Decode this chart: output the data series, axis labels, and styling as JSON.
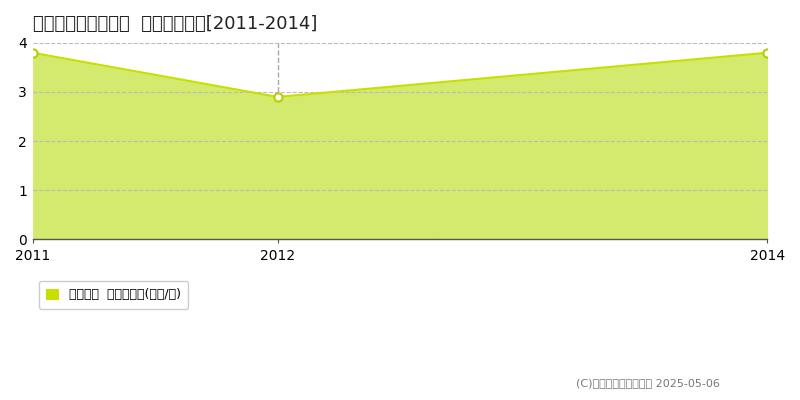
{
  "title": "鳥取市鹿野町乙亥正  土地価格推移[2011-2014]",
  "x_values": [
    2011,
    2012,
    2014
  ],
  "y_values": [
    3.8,
    2.9,
    3.8
  ],
  "xlim": [
    2011,
    2014
  ],
  "ylim": [
    0,
    4
  ],
  "yticks": [
    0,
    1,
    2,
    3,
    4
  ],
  "xticks": [
    2011,
    2012,
    2014
  ],
  "line_color": "#c8e000",
  "fill_color": "#d4ea6e",
  "marker_bg": "#ffffff",
  "marker_edge": "#b8cc00",
  "grid_color": "#bbbbbb",
  "vline_x": 2012,
  "vline_color": "#aaaaaa",
  "background_color": "#ffffff",
  "legend_label": "土地価格  平均坪単価(万円/坪)",
  "copyright_text": "(C)土地価格ドットコム 2025-05-06",
  "title_fontsize": 13,
  "axis_fontsize": 10,
  "legend_fontsize": 9,
  "copyright_fontsize": 8
}
